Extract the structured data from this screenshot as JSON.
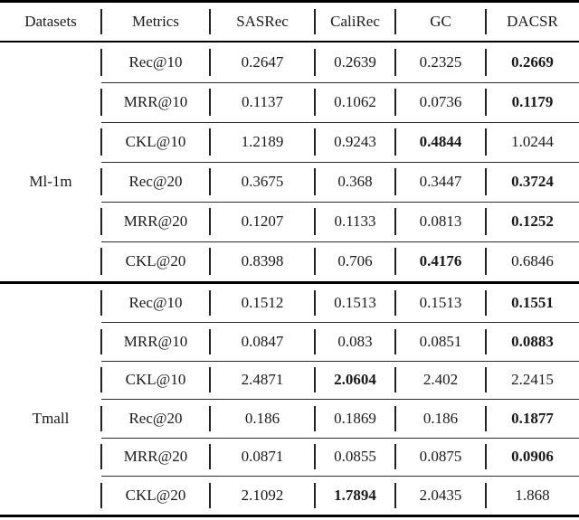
{
  "table": {
    "columns": [
      "Datasets",
      "Metrics",
      "SASRec",
      "CaliRec",
      "GC",
      "DACSR"
    ],
    "groups": [
      {
        "dataset": "Ml-1m",
        "rows": [
          {
            "metric": "Rec@10",
            "values": [
              "0.2647",
              "0.2639",
              "0.2325",
              "0.2669"
            ],
            "bold": 3
          },
          {
            "metric": "MRR@10",
            "values": [
              "0.1137",
              "0.1062",
              "0.0736",
              "0.1179"
            ],
            "bold": 3
          },
          {
            "metric": "CKL@10",
            "values": [
              "1.2189",
              "0.9243",
              "0.4844",
              "1.0244"
            ],
            "bold": 2
          },
          {
            "metric": "Rec@20",
            "values": [
              "0.3675",
              "0.368",
              "0.3447",
              "0.3724"
            ],
            "bold": 3
          },
          {
            "metric": "MRR@20",
            "values": [
              "0.1207",
              "0.1133",
              "0.0813",
              "0.1252"
            ],
            "bold": 3
          },
          {
            "metric": "CKL@20",
            "values": [
              "0.8398",
              "0.706",
              "0.4176",
              "0.6846"
            ],
            "bold": 2
          }
        ]
      },
      {
        "dataset": "Tmall",
        "rows": [
          {
            "metric": "Rec@10",
            "values": [
              "0.1512",
              "0.1513",
              "0.1513",
              "0.1551"
            ],
            "bold": 3
          },
          {
            "metric": "MRR@10",
            "values": [
              "0.0847",
              "0.083",
              "0.0851",
              "0.0883"
            ],
            "bold": 3
          },
          {
            "metric": "CKL@10",
            "values": [
              "2.4871",
              "2.0604",
              "2.402",
              "2.2415"
            ],
            "bold": 1
          },
          {
            "metric": "Rec@20",
            "values": [
              "0.186",
              "0.1869",
              "0.186",
              "0.1877"
            ],
            "bold": 3
          },
          {
            "metric": "MRR@20",
            "values": [
              "0.0871",
              "0.0855",
              "0.0875",
              "0.0906"
            ],
            "bold": 3
          },
          {
            "metric": "CKL@20",
            "values": [
              "2.1092",
              "1.7894",
              "2.0435",
              "1.868"
            ],
            "bold": 1
          }
        ]
      }
    ]
  },
  "colors": {
    "background": "#ffffff",
    "text": "#1a1a1a",
    "rule": "#000000"
  }
}
